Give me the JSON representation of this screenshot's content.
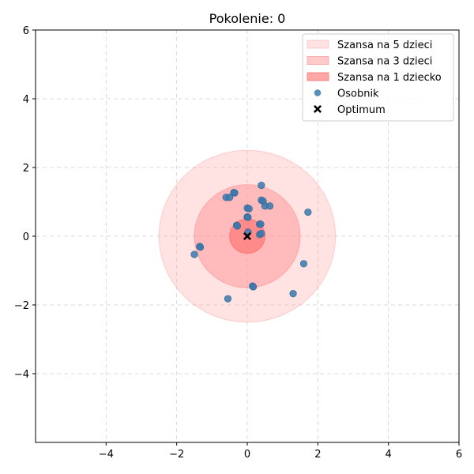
{
  "chart_data": {
    "type": "scatter",
    "title": "Pokolenie: 0",
    "xlabel": "",
    "ylabel": "",
    "xlim": [
      -6,
      6
    ],
    "ylim": [
      -6,
      6
    ],
    "x_ticks": [
      -4,
      -2,
      0,
      2,
      4,
      6
    ],
    "y_ticks": [
      -4,
      -2,
      0,
      2,
      4,
      6
    ],
    "x_tick_labels": [
      "−4",
      "−2",
      "0",
      "2",
      "4",
      "6"
    ],
    "y_tick_labels": [
      "−4",
      "−2",
      "0",
      "2",
      "4",
      "6"
    ],
    "grid": true,
    "legend_position": "top-right",
    "regions": [
      {
        "name": "Szansa na 5 dzieci",
        "center": [
          0,
          0
        ],
        "radius": 2.5,
        "color": "#ff9a9a",
        "alpha": 0.28
      },
      {
        "name": "Szansa na 3 dzieci",
        "center": [
          0,
          0
        ],
        "radius": 1.5,
        "color": "#ff8a8a",
        "alpha": 0.45
      },
      {
        "name": "Szansa na 1 dziecko",
        "center": [
          0,
          0
        ],
        "radius": 0.5,
        "color": "#ff6b6b",
        "alpha": 0.6
      }
    ],
    "series": [
      {
        "name": "Osobnik",
        "color": "#3b78ad",
        "marker": "circle",
        "points": [
          [
            0.4,
            1.48
          ],
          [
            -0.6,
            1.13
          ],
          [
            -0.5,
            1.13
          ],
          [
            -0.38,
            1.27
          ],
          [
            -0.36,
            1.26
          ],
          [
            0.4,
            1.05
          ],
          [
            0.45,
            1.02
          ],
          [
            0.5,
            0.88
          ],
          [
            0.64,
            0.88
          ],
          [
            1.72,
            0.7
          ],
          [
            0.0,
            0.82
          ],
          [
            0.05,
            0.8
          ],
          [
            0.0,
            0.56
          ],
          [
            0.02,
            0.55
          ],
          [
            -0.3,
            0.32
          ],
          [
            -0.28,
            0.3
          ],
          [
            0.35,
            0.35
          ],
          [
            0.38,
            0.35
          ],
          [
            0.35,
            0.05
          ],
          [
            0.4,
            0.08
          ],
          [
            0.02,
            0.12
          ],
          [
            -1.35,
            -0.3
          ],
          [
            -1.33,
            -0.32
          ],
          [
            -1.5,
            -0.53
          ],
          [
            1.6,
            -0.8
          ],
          [
            0.15,
            -1.45
          ],
          [
            0.17,
            -1.47
          ],
          [
            1.3,
            -1.67
          ],
          [
            -0.55,
            -1.82
          ]
        ]
      }
    ],
    "optimum": {
      "name": "Optimum",
      "x": 0,
      "y": 0,
      "color": "#000000",
      "marker": "x"
    }
  }
}
